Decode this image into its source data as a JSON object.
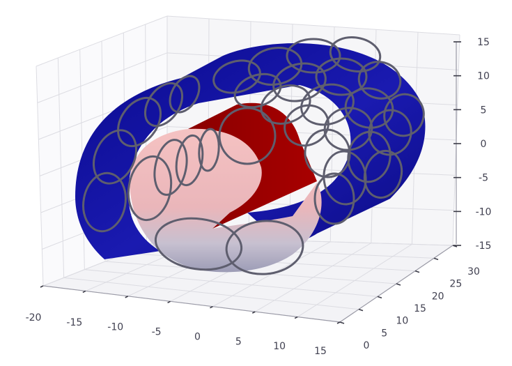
{
  "chart_data": {
    "type": "surface3d",
    "title": "",
    "xlabel": "",
    "ylabel": "",
    "zlabel": "",
    "grid": true,
    "xlim": [
      -20,
      15
    ],
    "ylim": [
      0,
      30
    ],
    "zlim": [
      -15,
      15
    ],
    "x_ticks": [
      "-20",
      "-15",
      "-10",
      "-5",
      "0",
      "5",
      "10",
      "15"
    ],
    "y_ticks": [
      "0",
      "5",
      "10",
      "15",
      "20",
      "25",
      "30"
    ],
    "z_ticks": [
      "15",
      "10",
      "5",
      "0",
      "-5",
      "-10",
      "-15"
    ],
    "surfaces": [
      {
        "shape": "outer-half-cylinder",
        "radius": 13,
        "length": 30,
        "color": "#10109a"
      },
      {
        "shape": "inner-half-cylinder",
        "radius": 9,
        "length": 30,
        "color": "#990000"
      },
      {
        "shape": "inner-shaded-half-cylinder",
        "radius": 9,
        "length": 30,
        "colors": [
          "#f2b8b8",
          "#a8a8c0"
        ]
      }
    ],
    "circle_outline_color": "#5e5e6e",
    "circle_count": 42
  }
}
